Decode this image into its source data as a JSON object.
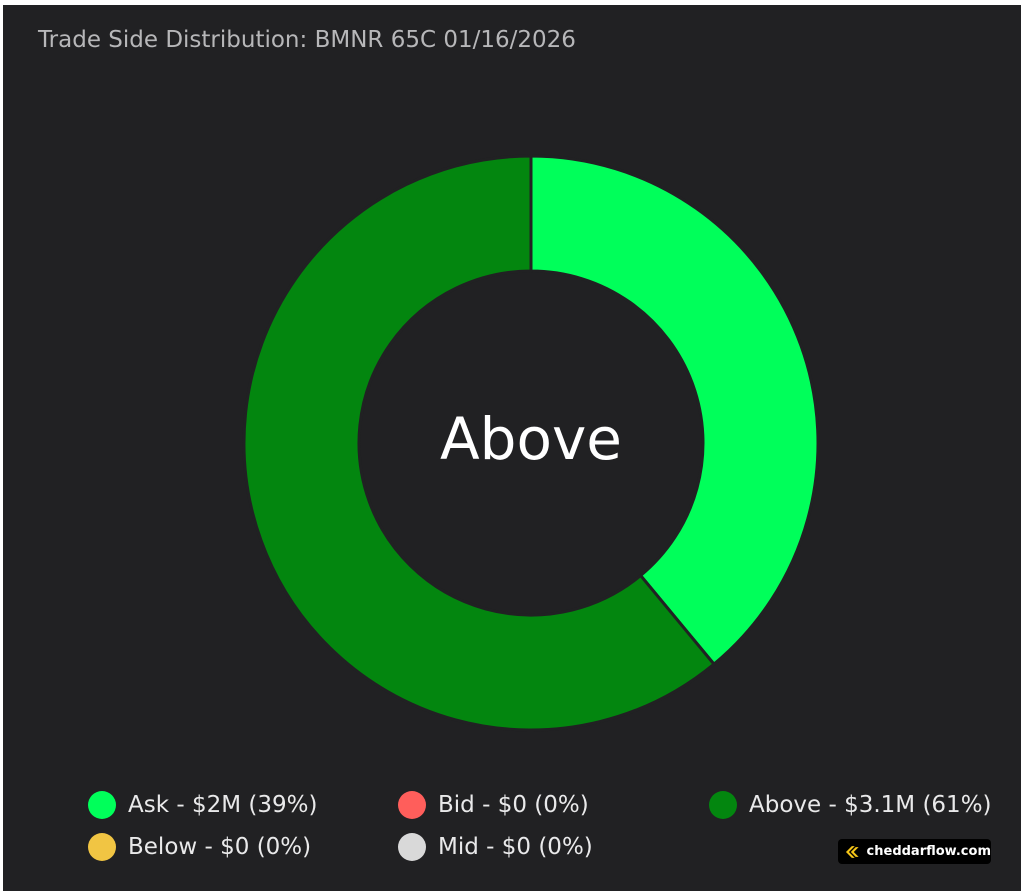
{
  "title": "Trade Side Distribution: BMNR 65C 01/16/2026",
  "watermark": {
    "text": "cheddarflow.com",
    "logo": "cheddarflow-logo-icon"
  },
  "colors": {
    "background": "#212123",
    "ask": "#00ff5a",
    "bid": "#ff5e5b",
    "above": "#03860f",
    "below": "#f1c543",
    "mid": "#d9d9d9"
  },
  "chart_data": {
    "type": "pie",
    "variant": "donut",
    "title": "Trade Side Distribution: BMNR 65C 01/16/2026",
    "center_label": "Above",
    "slices": [
      {
        "name": "Ask",
        "value": 2.0,
        "percent": 39,
        "color": "#00ff5a"
      },
      {
        "name": "Above",
        "value": 3.1,
        "percent": 61,
        "color": "#03860f"
      }
    ],
    "legend": [
      {
        "label": "Ask - $2M (39%)",
        "color": "#00ff5a"
      },
      {
        "label": "Bid - $0 (0%)",
        "color": "#ff5e5b"
      },
      {
        "label": "Above - $3.1M (61%)",
        "color": "#03860f"
      },
      {
        "label": "Below - $0 (0%)",
        "color": "#f1c543"
      },
      {
        "label": "Mid - $0 (0%)",
        "color": "#d9d9d9"
      }
    ],
    "legend_position": "bottom"
  }
}
